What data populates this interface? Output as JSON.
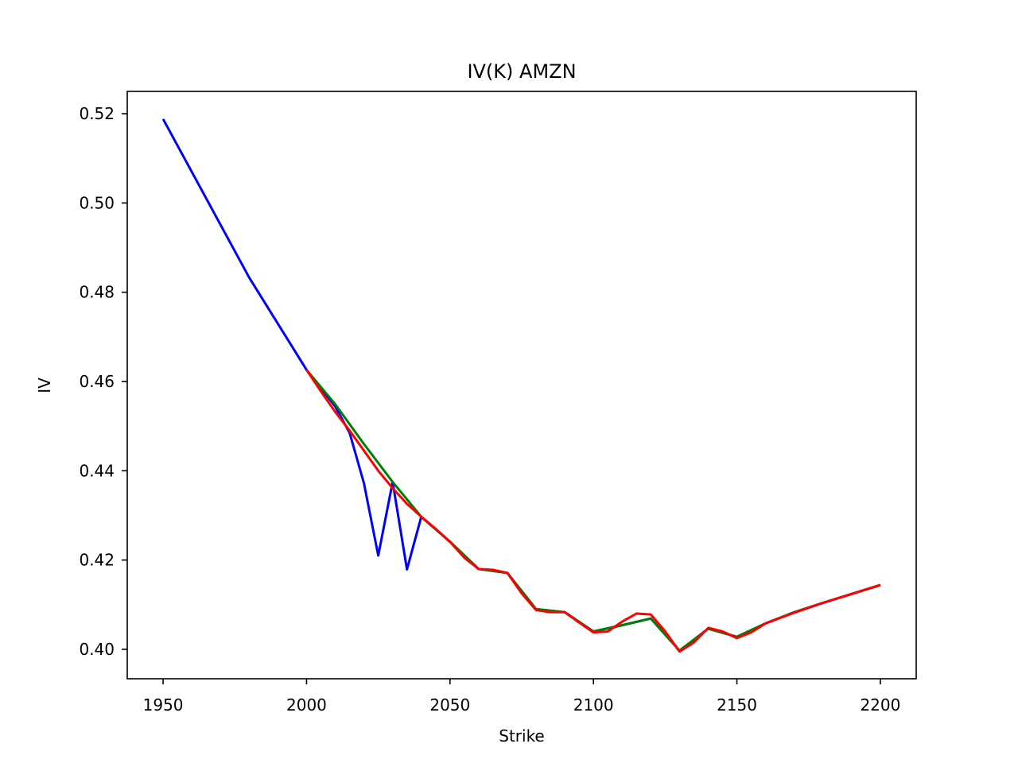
{
  "chart_data": {
    "type": "line",
    "title": "IV(K) AMZN",
    "xlabel": "Strike",
    "ylabel": "IV",
    "xlim": [
      1937.5,
      2212.5
    ],
    "ylim": [
      0.3934,
      0.525
    ],
    "xticks": [
      1950,
      2000,
      2050,
      2100,
      2150,
      2200
    ],
    "yticks": [
      0.4,
      0.42,
      0.44,
      0.46,
      0.48,
      0.5,
      0.52
    ],
    "ytick_labels": [
      "0.40",
      "0.42",
      "0.44",
      "0.46",
      "0.48",
      "0.50",
      "0.52"
    ],
    "grid": false,
    "legend": "none",
    "series": [
      {
        "color": "#0000ff",
        "x": [
          1950,
          1980,
          2000,
          2010,
          2015,
          2020,
          2025,
          2030,
          2035,
          2040,
          2050,
          2060,
          2070,
          2080,
          2090,
          2100,
          2110,
          2120,
          2130,
          2140,
          2150,
          2160,
          2170,
          2180,
          2190,
          2200
        ],
        "y": [
          0.5188,
          0.4833,
          0.4626,
          0.4544,
          0.4485,
          0.4372,
          0.421,
          0.4375,
          0.4179,
          0.4297,
          0.4241,
          0.418,
          0.4171,
          0.409,
          0.4083,
          0.404,
          0.4054,
          0.4069,
          0.3997,
          0.4046,
          0.4028,
          0.4058,
          0.4083,
          0.4104,
          0.4124,
          0.4144
        ]
      },
      {
        "color": "#008000",
        "x": [
          2000,
          2010,
          2020,
          2030,
          2040,
          2050,
          2060,
          2070,
          2080,
          2090,
          2100,
          2110,
          2120,
          2130,
          2140,
          2150,
          2160,
          2170,
          2180,
          2190,
          2200
        ],
        "y": [
          0.4626,
          0.4549,
          0.446,
          0.4375,
          0.4297,
          0.4241,
          0.418,
          0.4171,
          0.409,
          0.4083,
          0.404,
          0.4054,
          0.4069,
          0.3997,
          0.4046,
          0.4028,
          0.4058,
          0.4083,
          0.4104,
          0.4124,
          0.4144
        ]
      },
      {
        "color": "#ff0000",
        "x": [
          2000,
          2005,
          2010,
          2015,
          2020,
          2025,
          2030,
          2035,
          2040,
          2045,
          2050,
          2055,
          2060,
          2065,
          2070,
          2075,
          2080,
          2085,
          2090,
          2095,
          2100,
          2105,
          2110,
          2115,
          2120,
          2125,
          2130,
          2135,
          2140,
          2145,
          2150,
          2155,
          2160,
          2170,
          2180,
          2190,
          2200
        ],
        "y": [
          0.4626,
          0.4578,
          0.4532,
          0.449,
          0.4445,
          0.44,
          0.4361,
          0.4326,
          0.4297,
          0.427,
          0.4241,
          0.4205,
          0.418,
          0.4178,
          0.4171,
          0.4125,
          0.4088,
          0.4083,
          0.4083,
          0.406,
          0.4038,
          0.404,
          0.4062,
          0.408,
          0.4078,
          0.404,
          0.3995,
          0.4015,
          0.4048,
          0.404,
          0.4025,
          0.4038,
          0.4058,
          0.4082,
          0.4104,
          0.4124,
          0.4144
        ]
      }
    ]
  }
}
